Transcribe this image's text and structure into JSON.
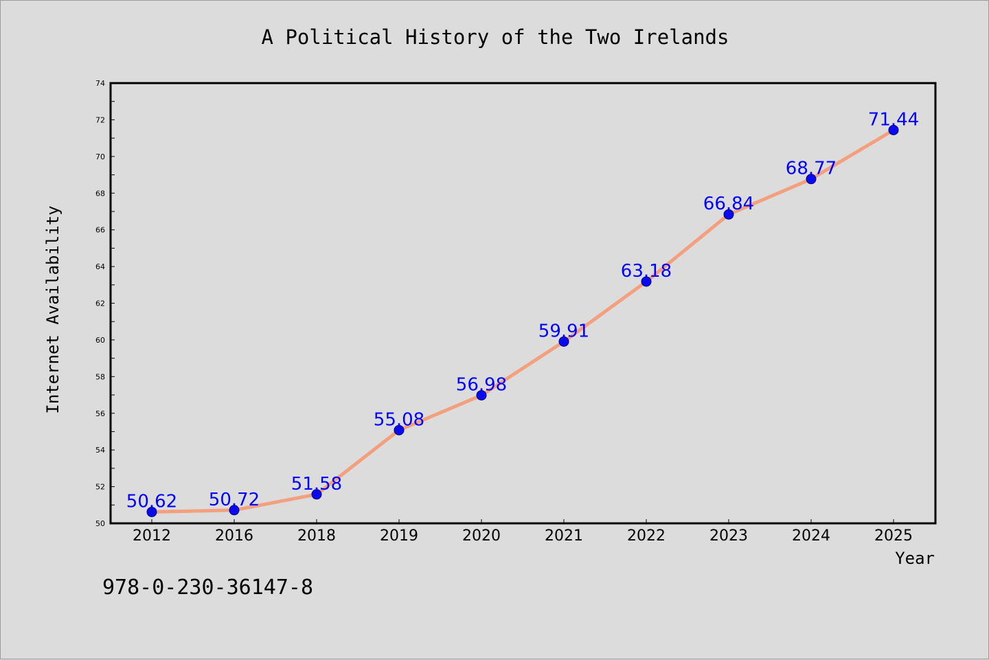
{
  "chart_data": {
    "type": "line",
    "title": "A Political History of the Two Irelands",
    "xlabel": "Year",
    "ylabel": "Internet Availability",
    "categories": [
      "2012",
      "2016",
      "2018",
      "2019",
      "2020",
      "2021",
      "2022",
      "2023",
      "2024",
      "2025"
    ],
    "series": [
      {
        "values": [
          50.62,
          50.72,
          51.58,
          55.08,
          56.98,
          59.91,
          63.18,
          66.84,
          68.77,
          71.44
        ]
      }
    ],
    "data_labels": [
      "50.62",
      "50.72",
      "51.58",
      "55.08",
      "56.98",
      "59.91",
      "63.18",
      "66.84",
      "68.77",
      "71.44"
    ],
    "ylim": [
      50,
      74
    ],
    "yticks": [
      "50",
      "52",
      "54",
      "56",
      "58",
      "60",
      "62",
      "64",
      "66",
      "68",
      "70",
      "72",
      "74"
    ],
    "grid": false,
    "line_color": "#f4a07e",
    "marker_color": "#0a0aee",
    "label_color": "#0000ff"
  },
  "footnote": "978-0-230-36147-8"
}
